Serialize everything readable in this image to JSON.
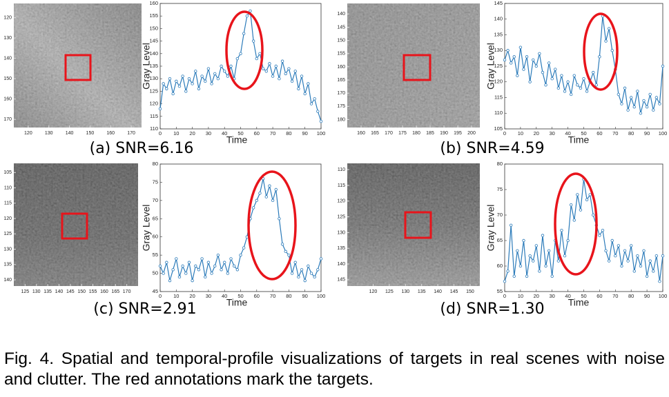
{
  "chart_data": [
    {
      "type": "line",
      "xlabel": "Time",
      "ylabel": "Gray Level",
      "xlim": [
        0,
        100
      ],
      "ylim": [
        110,
        160
      ],
      "xticks": [
        0,
        10,
        20,
        30,
        40,
        50,
        60,
        70,
        80,
        90,
        100
      ],
      "yticks": [
        110,
        115,
        120,
        125,
        130,
        135,
        140,
        145,
        150,
        155,
        160
      ],
      "x": [
        0,
        2,
        4,
        6,
        8,
        10,
        12,
        14,
        16,
        18,
        20,
        22,
        24,
        26,
        28,
        30,
        32,
        34,
        36,
        38,
        40,
        42,
        44,
        46,
        48,
        50,
        52,
        54,
        56,
        58,
        60,
        62,
        64,
        66,
        68,
        70,
        72,
        74,
        76,
        78,
        80,
        82,
        84,
        86,
        88,
        90,
        92,
        94,
        96,
        98,
        100
      ],
      "series": [
        {
          "color": "#2a7ab9",
          "values": [
            118,
            128,
            126,
            130,
            124,
            129,
            127,
            131,
            125,
            130,
            128,
            133,
            126,
            131,
            129,
            134,
            128,
            132,
            130,
            135,
            133,
            131,
            135,
            130,
            138,
            140,
            148,
            155,
            157,
            145,
            138,
            140,
            134,
            133,
            136,
            131,
            135,
            130,
            137,
            132,
            134,
            129,
            133,
            126,
            131,
            124,
            128,
            120,
            122,
            117,
            113
          ]
        }
      ]
    },
    {
      "type": "line",
      "xlabel": "Time",
      "ylabel": "Gray Level",
      "xlim": [
        0,
        100
      ],
      "ylim": [
        105,
        145
      ],
      "xticks": [
        0,
        10,
        20,
        30,
        40,
        50,
        60,
        70,
        80,
        90,
        100
      ],
      "yticks": [
        105,
        110,
        115,
        120,
        125,
        130,
        135,
        140,
        145
      ],
      "x": [
        0,
        2,
        4,
        6,
        8,
        10,
        12,
        14,
        16,
        18,
        20,
        22,
        24,
        26,
        28,
        30,
        32,
        34,
        36,
        38,
        40,
        42,
        44,
        46,
        48,
        50,
        52,
        54,
        56,
        58,
        60,
        62,
        64,
        66,
        68,
        70,
        72,
        74,
        76,
        78,
        80,
        82,
        84,
        86,
        88,
        90,
        92,
        94,
        96,
        98,
        100
      ],
      "series": [
        {
          "color": "#2a7ab9",
          "values": [
            127,
            130,
            126,
            128,
            122,
            131,
            124,
            128,
            120,
            127,
            125,
            129,
            123,
            119,
            126,
            121,
            124,
            118,
            122,
            117,
            120,
            116,
            122,
            119,
            118,
            121,
            117,
            120,
            123,
            119,
            128,
            141,
            133,
            137,
            130,
            124,
            116,
            113,
            118,
            111,
            115,
            112,
            117,
            110,
            114,
            112,
            116,
            111,
            115,
            113,
            125
          ]
        }
      ]
    },
    {
      "type": "line",
      "xlabel": "Time",
      "ylabel": "Gray Level",
      "xlim": [
        0,
        100
      ],
      "ylim": [
        45,
        80
      ],
      "xticks": [
        0,
        10,
        20,
        30,
        40,
        50,
        60,
        70,
        80,
        90,
        100
      ],
      "yticks": [
        45,
        50,
        55,
        60,
        65,
        70,
        75,
        80
      ],
      "x": [
        0,
        2,
        4,
        6,
        8,
        10,
        12,
        14,
        16,
        18,
        20,
        22,
        24,
        26,
        28,
        30,
        32,
        34,
        36,
        38,
        40,
        42,
        44,
        46,
        48,
        50,
        52,
        54,
        56,
        58,
        60,
        62,
        64,
        66,
        68,
        70,
        72,
        74,
        76,
        78,
        80,
        82,
        84,
        86,
        88,
        90,
        92,
        94,
        96,
        98,
        100
      ],
      "series": [
        {
          "color": "#2a7ab9",
          "values": [
            52,
            50,
            53,
            48,
            51,
            54,
            49,
            52,
            50,
            53,
            48,
            52,
            51,
            54,
            49,
            53,
            50,
            52,
            55,
            51,
            53,
            50,
            54,
            52,
            51,
            55,
            57,
            60,
            65,
            68,
            70,
            72,
            76,
            71,
            74,
            70,
            73,
            65,
            58,
            56,
            55,
            50,
            53,
            49,
            51,
            48,
            52,
            50,
            49,
            51,
            54
          ]
        }
      ]
    },
    {
      "type": "line",
      "xlabel": "Time",
      "ylabel": "Gray Level",
      "xlim": [
        0,
        100
      ],
      "ylim": [
        55,
        80
      ],
      "xticks": [
        0,
        10,
        20,
        30,
        40,
        50,
        60,
        70,
        80,
        90,
        100
      ],
      "yticks": [
        55,
        60,
        65,
        70,
        75,
        80
      ],
      "x": [
        0,
        2,
        4,
        6,
        8,
        10,
        12,
        14,
        16,
        18,
        20,
        22,
        24,
        26,
        28,
        30,
        32,
        34,
        36,
        38,
        40,
        42,
        44,
        46,
        48,
        50,
        52,
        54,
        56,
        58,
        60,
        62,
        64,
        66,
        68,
        70,
        72,
        74,
        76,
        78,
        80,
        82,
        84,
        86,
        88,
        90,
        92,
        94,
        96,
        98,
        100
      ],
      "series": [
        {
          "color": "#2a7ab9",
          "values": [
            57,
            59,
            68,
            58,
            63,
            60,
            65,
            58,
            62,
            61,
            64,
            59,
            66,
            60,
            63,
            58,
            65,
            61,
            67,
            62,
            65,
            72,
            69,
            74,
            71,
            77,
            73,
            74,
            70,
            68,
            66,
            67,
            63,
            61,
            65,
            62,
            64,
            60,
            63,
            61,
            64,
            59,
            62,
            60,
            63,
            58,
            61,
            59,
            62,
            57,
            62
          ]
        }
      ]
    }
  ],
  "images": [
    {
      "xlim": [
        113,
        175
      ],
      "ylim": [
        113,
        174
      ],
      "xticks": [
        120,
        130,
        140,
        150,
        160,
        170
      ],
      "yticks": [
        120,
        130,
        140,
        150,
        160,
        170
      ]
    },
    {
      "xlim": [
        155,
        203
      ],
      "ylim": [
        136,
        183
      ],
      "xticks": [
        160,
        165,
        170,
        175,
        180,
        185,
        190,
        195,
        200
      ],
      "yticks": [
        140,
        145,
        150,
        155,
        160,
        165,
        170,
        175,
        180
      ]
    },
    {
      "xlim": [
        120,
        175
      ],
      "ylim": [
        102,
        142
      ],
      "xticks": [
        125,
        130,
        135,
        140,
        145,
        150,
        155,
        160,
        165,
        170
      ],
      "yticks": [
        105,
        110,
        115,
        120,
        125,
        130,
        135,
        140
      ]
    },
    {
      "xlim": [
        112,
        153
      ],
      "ylim": [
        108,
        147
      ],
      "xticks": [
        120,
        125,
        130,
        135,
        140,
        145,
        150
      ],
      "yticks": [
        110,
        115,
        120,
        125,
        130,
        135,
        140,
        145
      ]
    }
  ],
  "panel_captions": [
    "(a) SNR=6.16",
    "(b) SNR=4.59",
    "(c) SNR=2.91",
    "(d) SNR=1.30"
  ],
  "figure_caption": "Fig. 4. Spatial and temporal-profile visualizations of targets in real scenes with noise and clutter. The red annotations mark the targets."
}
